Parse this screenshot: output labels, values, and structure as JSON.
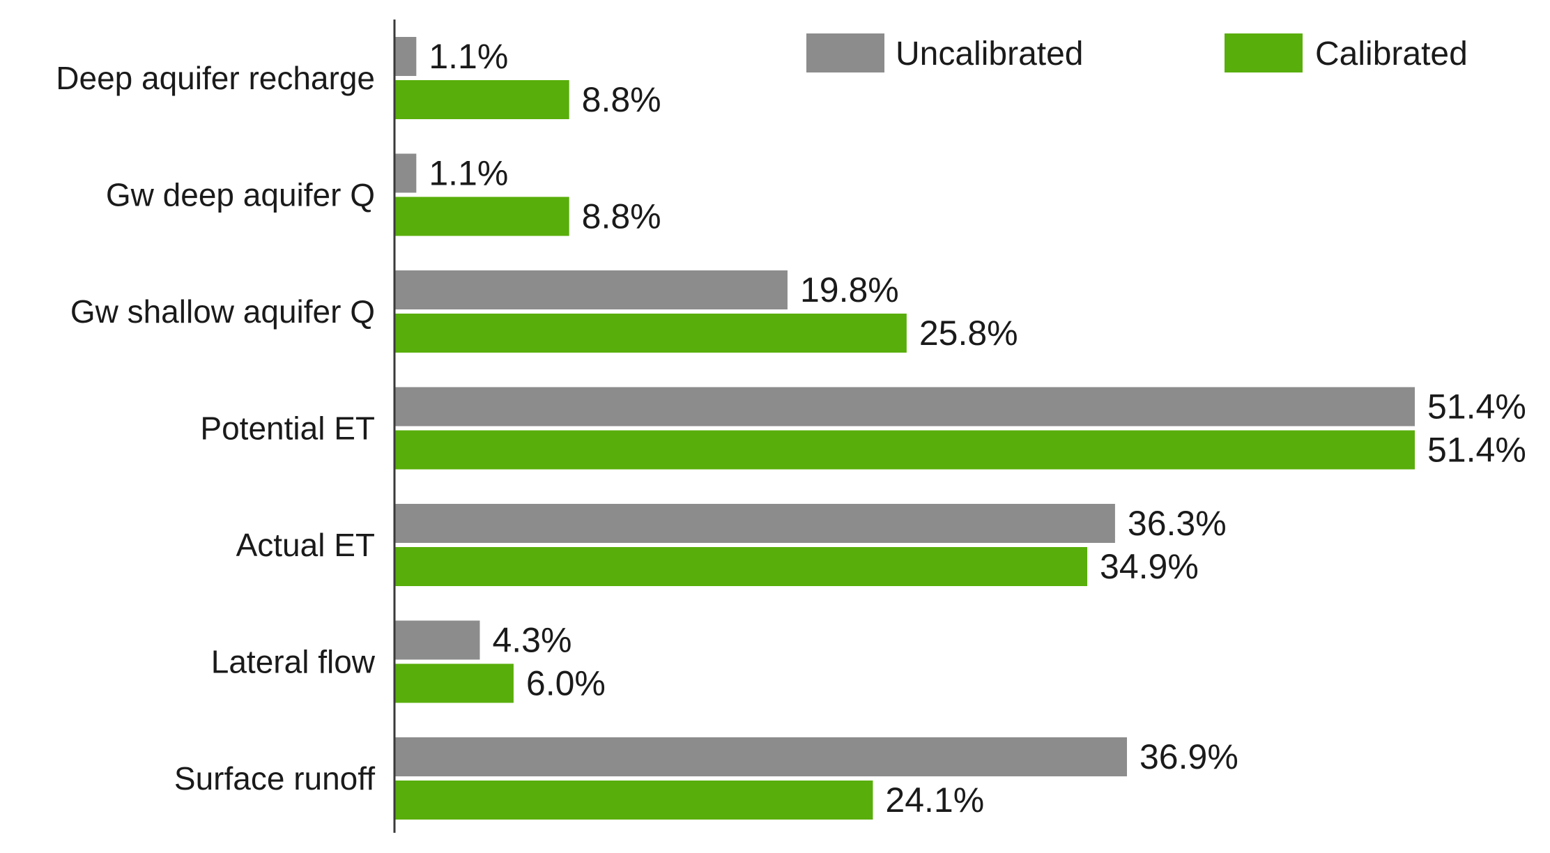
{
  "chart_data": {
    "type": "bar",
    "orientation": "horizontal",
    "categories": [
      "Deep aquifer recharge",
      "Gw deep aquifer Q",
      "Gw shallow aquifer Q",
      "Potential ET",
      "Actual ET",
      "Lateral flow",
      "Surface runoff"
    ],
    "series": [
      {
        "name": "Uncalibrated",
        "color": "#8c8c8c",
        "values": [
          1.1,
          1.1,
          19.8,
          51.4,
          36.3,
          4.3,
          36.9
        ],
        "labels": [
          "1.1%",
          "1.1%",
          "19.8%",
          "51.4%",
          "36.3%",
          "4.3%",
          "36.9%"
        ]
      },
      {
        "name": "Calibrated",
        "color": "#58ae0a",
        "values": [
          8.8,
          8.8,
          25.8,
          51.4,
          34.9,
          6.0,
          24.1
        ],
        "labels": [
          "8.8%",
          "8.8%",
          "25.8%",
          "51.4%",
          "34.9%",
          "6.0%",
          "24.1%"
        ]
      }
    ],
    "title": "",
    "xlabel": "",
    "ylabel": "",
    "xlim": [
      0,
      51.4
    ],
    "grid": false,
    "legend": "top-right"
  }
}
